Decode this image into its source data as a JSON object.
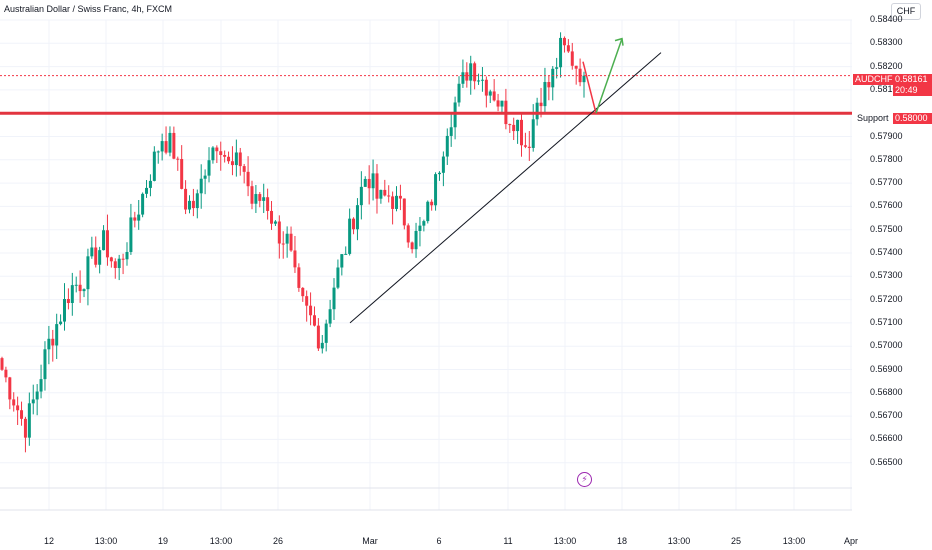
{
  "title": "Australian Dollar / Swiss Franc, 4h, FXCM",
  "currency": "CHF",
  "colors": {
    "up": "#089981",
    "down": "#f23645",
    "support": "#e2343f",
    "trend": "#131722",
    "arrow_up": "#4caf50",
    "arrow_down": "#f23645",
    "grid": "#f0f3fa"
  },
  "price_tag": {
    "symbol": "AUDCHF",
    "price": "0.58161",
    "countdown": "20:49"
  },
  "support": {
    "label": "Support",
    "price": "0.58000"
  },
  "chart_data": {
    "type": "candlestick",
    "title": "Australian Dollar / Swiss Franc, 4h, FXCM",
    "ylim": [
      0.5645,
      0.5845
    ],
    "y_ticks": [
      "0.58400",
      "0.58300",
      "0.58200",
      "0.58100",
      "0.57900",
      "0.57800",
      "0.57700",
      "0.57600",
      "0.57500",
      "0.57400",
      "0.57300",
      "0.57200",
      "0.57100",
      "0.57000",
      "0.56900",
      "0.56800",
      "0.56700",
      "0.56600",
      "0.56500"
    ],
    "x_ticks": [
      "12",
      "13:00",
      "19",
      "13:00",
      "26",
      "Mar",
      "6",
      "11",
      "13:00",
      "18",
      "13:00",
      "25",
      "13:00",
      "Apr"
    ],
    "support_level": 0.58,
    "last_price": 0.58161,
    "trendline": {
      "from": {
        "price": 0.571
      },
      "to": {
        "price": 0.5826
      }
    },
    "key_path": [
      0.569,
      0.5678,
      0.5665,
      0.568,
      0.57,
      0.5712,
      0.5725,
      0.5728,
      0.5738,
      0.5745,
      0.5732,
      0.5745,
      0.576,
      0.5775,
      0.579,
      0.5785,
      0.5762,
      0.576,
      0.5782,
      0.579,
      0.5775,
      0.578,
      0.576,
      0.5765,
      0.575,
      0.5745,
      0.572,
      0.5712,
      0.5702,
      0.5725,
      0.574,
      0.576,
      0.5775,
      0.5762,
      0.5765,
      0.5758,
      0.5745,
      0.5752,
      0.577,
      0.5795,
      0.5808,
      0.5822,
      0.5815,
      0.581,
      0.58,
      0.5798,
      0.5785,
      0.5808,
      0.5812,
      0.5828,
      0.5823,
      0.5816
    ],
    "projection": {
      "down_to": 0.58,
      "up_to": 0.5832
    }
  }
}
